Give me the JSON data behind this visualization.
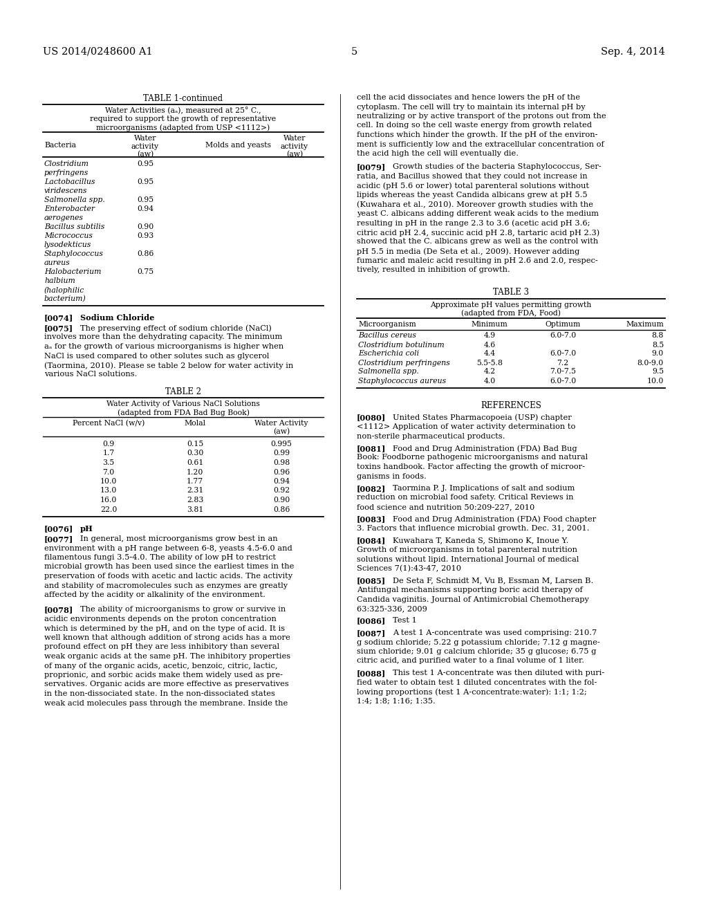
{
  "page_number": "5",
  "patent_number": "US 2014/0248600 A1",
  "patent_date": "Sep. 4, 2014",
  "background_color": "#ffffff",
  "table1_rows": [
    [
      "Clostridium\nperfringens",
      "0.95"
    ],
    [
      "Lactobacillus\nviridescens",
      "0.95"
    ],
    [
      "Salmonella spp.",
      "0.95"
    ],
    [
      "Enterobacter\naerogenes",
      "0.94"
    ],
    [
      "Bacillus subtilis",
      "0.90"
    ],
    [
      "Micrococcus\nlysodekticus",
      "0.93"
    ],
    [
      "Staphylococcus\naureus",
      "0.86"
    ],
    [
      "Halobacterium\nhalbium\n(halophilic\nbacterium)",
      "0.75"
    ]
  ],
  "table2_rows": [
    [
      "0.9",
      "0.15",
      "0.995"
    ],
    [
      "1.7",
      "0.30",
      "0.99"
    ],
    [
      "3.5",
      "0.61",
      "0.98"
    ],
    [
      "7.0",
      "1.20",
      "0.96"
    ],
    [
      "10.0",
      "1.77",
      "0.94"
    ],
    [
      "13.0",
      "2.31",
      "0.92"
    ],
    [
      "16.0",
      "2.83",
      "0.90"
    ],
    [
      "22.0",
      "3.81",
      "0.86"
    ]
  ],
  "table3_rows": [
    [
      "Bacillus cereus",
      "4.9",
      "6.0-7.0",
      "8.8"
    ],
    [
      "Clostridium botulinum",
      "4.6",
      "",
      "8.5"
    ],
    [
      "Escherichia coli",
      "4.4",
      "6.0-7.0",
      "9.0"
    ],
    [
      "Clostridium perfringens",
      "5.5-5.8",
      "7.2",
      "8.0-9.0"
    ],
    [
      "Salmonella spp.",
      "4.2",
      "7.0-7.5",
      "9.5"
    ],
    [
      "Staphylococcus aureus",
      "4.0",
      "6.0-7.0",
      "10.0"
    ]
  ],
  "right_top_lines": [
    "cell the acid dissociates and hence lowers the pH of the",
    "cytoplasm. The cell will try to maintain its internal pH by",
    "neutralizing or by active transport of the protons out from the",
    "cell. In doing so the cell waste energy from growth related",
    "functions which hinder the growth. If the pH of the environ-",
    "ment is sufficiently low and the extracellular concentration of",
    "the acid high the cell will eventually die."
  ],
  "p79_lines": [
    "Growth studies of the bacteria Staphylococcus, Ser-",
    "ratia, and Bacillus showed that they could not increase in",
    "acidic (pH 5.6 or lower) total parenteral solutions without",
    "lipids whereas the yeast Candida albicans grew at pH 5.5",
    "(Kuwahara et al., 2010). Moreover growth studies with the",
    "yeast C. albicans adding different weak acids to the medium",
    "resulting in pH in the range 2.3 to 3.6 (acetic acid pH 3.6;",
    "citric acid pH 2.4, succinic acid pH 2.8, tartaric acid pH 2.3)",
    "showed that the C. albicans grew as well as the control with",
    "pH 5.5 in media (De Seta et al., 2009). However adding",
    "fumaric and maleic acid resulting in pH 2.6 and 2.0, respec-",
    "tively, resulted in inhibition of growth."
  ],
  "p75_lines": [
    "The preserving effect of sodium chloride (NaCl)",
    "involves more than the dehydrating capacity. The minimum",
    "aₐ for the growth of various microorganisms is higher when",
    "NaCl is used compared to other solutes such as glycerol",
    "(Taormina, 2010). Please se table 2 below for water activity in",
    "various NaCl solutions."
  ],
  "p77_lines": [
    "In general, most microorganisms grow best in an",
    "environment with a pH range between 6-8, yeasts 4.5-6.0 and",
    "filamentous fungi 3.5-4.0. The ability of low pH to restrict",
    "microbial growth has been used since the earliest times in the",
    "preservation of foods with acetic and lactic acids. The activity",
    "and stability of macromolecules such as enzymes are greatly",
    "affected by the acidity or alkalinity of the environment."
  ],
  "p78_lines": [
    "The ability of microorganisms to grow or survive in",
    "acidic environments depends on the proton concentration",
    "which is determined by the pH, and on the type of acid. It is",
    "well known that although addition of strong acids has a more",
    "profound effect on pH they are less inhibitory than several",
    "weak organic acids at the same pH. The inhibitory properties",
    "of many of the organic acids, acetic, benzoic, citric, lactic,",
    "proprionic, and sorbic acids make them widely used as pre-",
    "servatives. Organic acids are more effective as preservatives",
    "in the non-dissociated state. In the non-dissociated states",
    "weak acid molecules pass through the membrane. Inside the"
  ],
  "refs": [
    [
      "[0080]",
      "United States Pharmacopoeia (USP) chapter",
      "<1112> Application of water activity determination to",
      "non-sterile pharmaceutical products."
    ],
    [
      "[0081]",
      "Food and Drug Administration (FDA) Bad Bug",
      "Book: Foodborne pathogenic microorganisms and natural",
      "toxins handbook. Factor affecting the growth of microor-",
      "ganisms in foods."
    ],
    [
      "[0082]",
      "Taormina P. J. Implications of salt and sodium",
      "reduction on microbial food safety. Critical Reviews in",
      "food science and nutrition 50:209-227, 2010"
    ],
    [
      "[0083]",
      "Food and Drug Administration (FDA) Food chapter",
      "3. Factors that influence microbial growth. Dec. 31, 2001."
    ],
    [
      "[0084]",
      "Kuwahara T, Kaneda S, Shimono K, Inoue Y.",
      "Growth of microorganisms in total parenteral nutrition",
      "solutions without lipid. International Journal of medical",
      "Sciences 7(1):43-47, 2010"
    ],
    [
      "[0085]",
      "De Seta F, Schmidt M, Vu B, Essman M, Larsen B.",
      "Antifungal mechanisms supporting boric acid therapy of",
      "Candida vaginitis. Journal of Antimicrobial Chemotherapy",
      "63:325-336, 2009"
    ],
    [
      "[0086]",
      "Test 1"
    ],
    [
      "[0087]",
      "A test 1 A-concentrate was used comprising: 210.7",
      "g sodium chloride; 5.22 g potassium chloride; 7.12 g magne-",
      "sium chloride; 9.01 g calcium chloride; 35 g glucose; 6.75 g",
      "citric acid, and purified water to a final volume of 1 liter."
    ],
    [
      "[0088]",
      "This test 1 A-concentrate was then diluted with puri-",
      "fied water to obtain test 1 diluted concentrates with the fol-",
      "lowing proportions (test 1 A-concentrate:water): 1:1; 1:2;",
      "1:4; 1:8; 1:16; 1:35."
    ]
  ]
}
